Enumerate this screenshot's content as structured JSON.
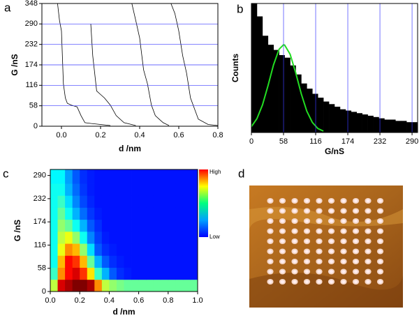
{
  "chart_data": [
    {
      "type": "line",
      "panel_label": "a",
      "y_label": "G /nS",
      "x_label": "d /nm",
      "xlim": [
        -0.1,
        0.8
      ],
      "ylim": [
        0,
        348
      ],
      "xticks": [
        {
          "value": 0,
          "label": "0.0"
        },
        0.2,
        0.4,
        0.6,
        0.8
      ],
      "yticks": [
        0,
        58,
        116,
        174,
        232,
        290,
        348
      ],
      "grid": true,
      "series": [
        {
          "color": "#000000",
          "x": [
            -0.02,
            -0.01,
            0.0,
            0.01,
            0.02,
            0.03,
            0.05,
            0.08,
            0.1,
            0.12,
            0.15,
            0.2,
            0.25
          ],
          "values": [
            348,
            300,
            270,
            120,
            80,
            65,
            60,
            55,
            30,
            10,
            8,
            5,
            2
          ]
        },
        {
          "color": "#000000",
          "x": [
            0.15,
            0.16,
            0.17,
            0.18,
            0.2,
            0.22,
            0.25,
            0.28,
            0.32,
            0.38
          ],
          "values": [
            290,
            200,
            150,
            100,
            90,
            80,
            60,
            30,
            10,
            2
          ]
        },
        {
          "color": "#000000",
          "x": [
            0.36,
            0.38,
            0.4,
            0.42,
            0.44,
            0.46,
            0.48,
            0.5,
            0.52,
            0.55
          ],
          "values": [
            348,
            300,
            250,
            160,
            120,
            60,
            30,
            20,
            10,
            2
          ]
        },
        {
          "color": "#000000",
          "x": [
            0.56,
            0.58,
            0.6,
            0.62,
            0.64,
            0.66,
            0.7,
            0.75,
            0.8
          ],
          "values": [
            348,
            320,
            270,
            200,
            150,
            80,
            20,
            5,
            2
          ]
        }
      ]
    },
    {
      "type": "histogram",
      "panel_label": "b",
      "y_label": "Counts",
      "x_label": "G/nS",
      "xlim": [
        0,
        300
      ],
      "ylim": [
        0,
        100
      ],
      "xticks": [
        0,
        58,
        116,
        174,
        232,
        290
      ],
      "grid": true,
      "color": "#000000",
      "bins": [
        0,
        10,
        20,
        30,
        40,
        50,
        60,
        70,
        80,
        90,
        100,
        110,
        120,
        130,
        140,
        150,
        160,
        170,
        180,
        190,
        200,
        210,
        220,
        230,
        240,
        250,
        260,
        270,
        280,
        290,
        300
      ],
      "counts": [
        100,
        90,
        75,
        68,
        64,
        60,
        58,
        52,
        45,
        38,
        34,
        30,
        27,
        24,
        22,
        20,
        18,
        17,
        16,
        15,
        14,
        13,
        12,
        11,
        10,
        10,
        9,
        9,
        8,
        8
      ],
      "fit": {
        "color": "#22dd22",
        "x": [
          0,
          10,
          20,
          30,
          40,
          50,
          58,
          60,
          70,
          80,
          90,
          100,
          110,
          120,
          130
        ],
        "values": [
          4.6,
          10.7,
          21.4,
          36.3,
          52.5,
          64.6,
          68,
          67.8,
          60.6,
          46.2,
          30,
          16.6,
          7.8,
          3.1,
          1.1
        ]
      }
    },
    {
      "type": "heatmap",
      "panel_label": "c",
      "y_label": "G /nS",
      "x_label": "d /nm",
      "xlim": [
        0,
        1
      ],
      "ylim": [
        0,
        305
      ],
      "xticks": [
        {
          "value": 0,
          "label": "0.0"
        },
        0.2,
        0.4,
        0.6,
        0.8,
        {
          "value": 1,
          "label": "1.0"
        }
      ],
      "yticks": [
        0,
        58,
        116,
        174,
        232,
        290
      ],
      "colorbar_labels": [
        "High",
        "Low"
      ],
      "xbins": [
        0,
        0.05,
        0.1,
        0.15,
        0.2,
        0.25,
        0.3,
        0.35,
        0.4,
        0.45,
        0.5,
        0.55,
        0.6,
        0.65,
        0.7,
        0.75,
        0.8,
        0.85,
        0.9,
        0.95,
        1
      ],
      "ybins": [
        0,
        30,
        60,
        90,
        120,
        150,
        180,
        210,
        240,
        270,
        305
      ],
      "z": [
        [
          0.5,
          0.9,
          0.95,
          1,
          1,
          0.95,
          0.7,
          0.5,
          0.45,
          0.42,
          0.4,
          0.4,
          0.4,
          0.4,
          0.4,
          0.4,
          0.4,
          0.4,
          0.4,
          0.4
        ],
        [
          0.35,
          0.7,
          0.85,
          0.9,
          0.8,
          0.6,
          0.35,
          0.2,
          0.1,
          0.05,
          0.03,
          0.02,
          0.02,
          0.02,
          0.02,
          0.02,
          0.02,
          0.02,
          0.02,
          0.02
        ],
        [
          0.3,
          0.65,
          0.85,
          0.8,
          0.65,
          0.4,
          0.2,
          0.1,
          0.05,
          0.03,
          0.02,
          0.02,
          0.02,
          0.02,
          0.02,
          0.02,
          0.02,
          0.02,
          0.02,
          0.02
        ],
        [
          0.3,
          0.55,
          0.7,
          0.65,
          0.45,
          0.25,
          0.1,
          0.05,
          0.03,
          0.02,
          0.02,
          0.02,
          0.02,
          0.02,
          0.02,
          0.02,
          0.02,
          0.02,
          0.02,
          0.02
        ],
        [
          0.3,
          0.5,
          0.55,
          0.45,
          0.3,
          0.15,
          0.07,
          0.03,
          0.02,
          0.02,
          0.02,
          0.02,
          0.02,
          0.02,
          0.02,
          0.02,
          0.02,
          0.02,
          0.02,
          0.02
        ],
        [
          0.3,
          0.45,
          0.4,
          0.3,
          0.2,
          0.1,
          0.05,
          0.02,
          0.02,
          0.02,
          0.02,
          0.02,
          0.02,
          0.02,
          0.02,
          0.02,
          0.02,
          0.02,
          0.02,
          0.02
        ],
        [
          0.3,
          0.4,
          0.3,
          0.2,
          0.12,
          0.06,
          0.03,
          0.02,
          0.02,
          0.02,
          0.02,
          0.02,
          0.02,
          0.02,
          0.02,
          0.02,
          0.02,
          0.02,
          0.02,
          0.02
        ],
        [
          0.3,
          0.35,
          0.25,
          0.15,
          0.08,
          0.04,
          0.02,
          0.02,
          0.02,
          0.02,
          0.02,
          0.02,
          0.02,
          0.02,
          0.02,
          0.02,
          0.02,
          0.02,
          0.02,
          0.02
        ],
        [
          0.3,
          0.3,
          0.2,
          0.12,
          0.06,
          0.03,
          0.02,
          0.02,
          0.02,
          0.02,
          0.02,
          0.02,
          0.02,
          0.02,
          0.02,
          0.02,
          0.02,
          0.02,
          0.02,
          0.02
        ],
        [
          0.28,
          0.28,
          0.18,
          0.1,
          0.05,
          0.03,
          0.02,
          0.02,
          0.02,
          0.02,
          0.02,
          0.02,
          0.02,
          0.02,
          0.02,
          0.02,
          0.02,
          0.02,
          0.02,
          0.02
        ]
      ]
    }
  ],
  "image": {
    "panel_label": "d"
  }
}
